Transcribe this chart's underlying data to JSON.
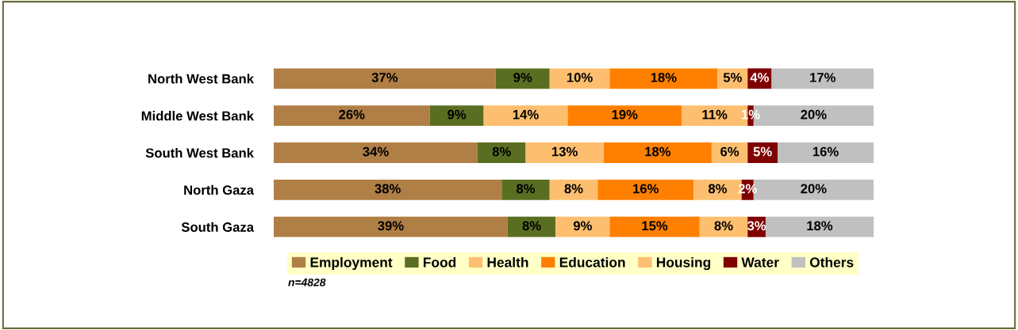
{
  "chart_data": {
    "type": "bar",
    "orientation": "horizontal",
    "stacked": true,
    "legend": "bottom",
    "grid": false,
    "categories": [
      "North West Bank",
      "Middle West Bank",
      "South West Bank",
      "North Gaza",
      "South Gaza"
    ],
    "series": [
      {
        "name": "Employment",
        "color": "#b07f45",
        "values": [
          37,
          26,
          34,
          38,
          39
        ],
        "value_labels": [
          "37%",
          "26%",
          "34%",
          "38%",
          "39%"
        ]
      },
      {
        "name": "Food",
        "color": "#5a6e22",
        "values": [
          9,
          9,
          8,
          8,
          8
        ],
        "value_labels": [
          "9%",
          "9%",
          "8%",
          "8%",
          "8%"
        ]
      },
      {
        "name": "Health",
        "color": "#fdbf6f",
        "values": [
          10,
          14,
          13,
          8,
          9
        ],
        "value_labels": [
          "10%",
          "14%",
          "13%",
          "8%",
          "9%"
        ]
      },
      {
        "name": "Education",
        "color": "#ff8000",
        "values": [
          18,
          19,
          18,
          16,
          15
        ],
        "value_labels": [
          "18%",
          "19%",
          "18%",
          "16%",
          "15%"
        ]
      },
      {
        "name": "Housing",
        "color": "#fdbf6f",
        "values": [
          5,
          11,
          6,
          8,
          8
        ],
        "value_labels": [
          "5%",
          "11%",
          "6%",
          "8%",
          "8%"
        ]
      },
      {
        "name": "Water",
        "color": "#800000",
        "values": [
          4,
          1,
          5,
          2,
          3
        ],
        "value_labels": [
          "4%",
          "1%",
          "5%",
          "2%",
          "3%"
        ]
      },
      {
        "name": "Others",
        "color": "#c0c0c0",
        "values": [
          17,
          20,
          16,
          20,
          18
        ],
        "value_labels": [
          "17%",
          "20%",
          "16%",
          "20%",
          "18%"
        ]
      }
    ],
    "annotations": [
      "n=4828"
    ]
  }
}
